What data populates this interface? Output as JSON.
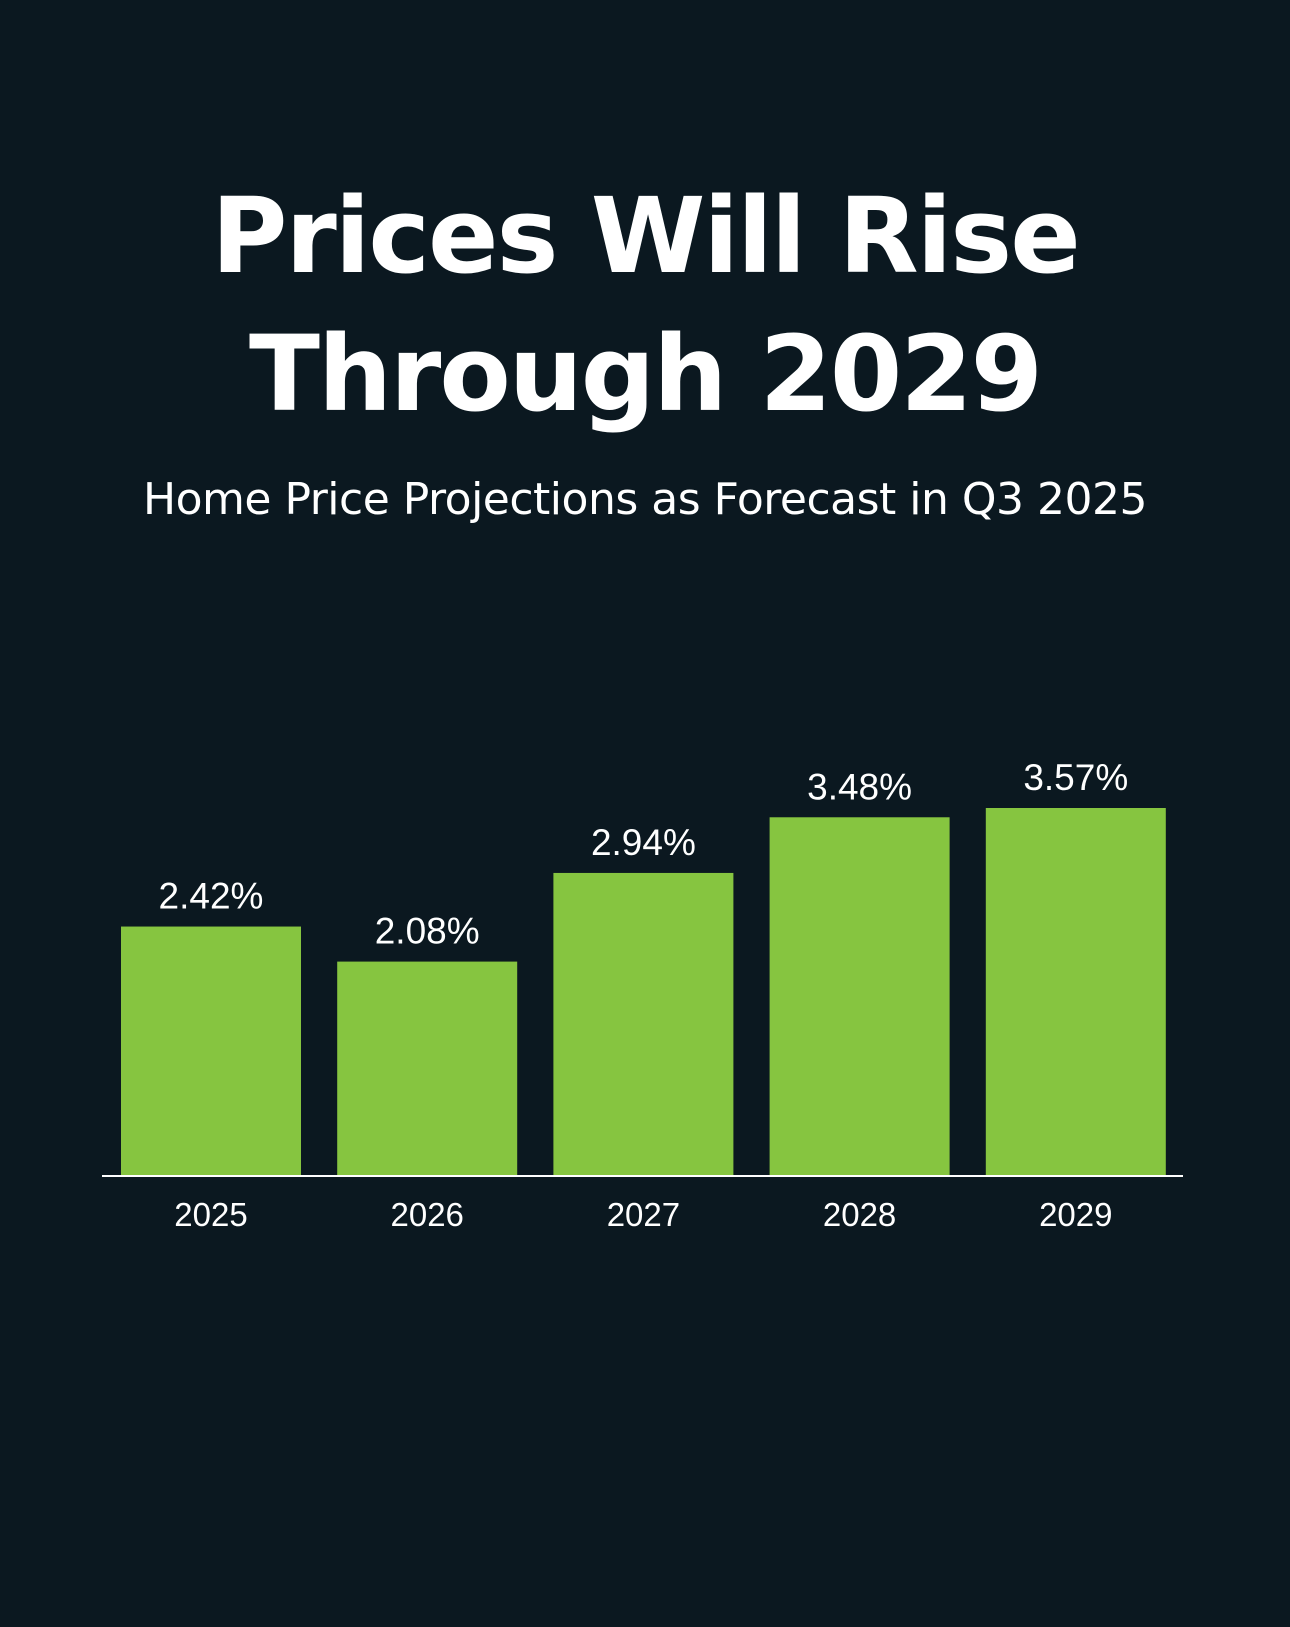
{
  "header": {
    "title_line1": "Prices Will Rise",
    "title_line2": "Through 2029",
    "subtitle": "Home Price Projections as Forecast in Q3 2025"
  },
  "colors": {
    "background": "#0b1820",
    "bar": "#86c540",
    "text": "#ffffff"
  },
  "chart_data": {
    "type": "bar",
    "title": "Prices Will Rise Through 2029",
    "subtitle": "Home Price Projections as Forecast in Q3 2025",
    "categories": [
      "2025",
      "2026",
      "2027",
      "2028",
      "2029"
    ],
    "values": [
      2.42,
      2.08,
      2.94,
      3.48,
      3.57
    ],
    "value_labels": [
      "2.42%",
      "2.08%",
      "2.94%",
      "3.48%",
      "3.57%"
    ],
    "xlabel": "",
    "ylabel": "",
    "ylim": [
      0,
      3.57
    ],
    "grid": false,
    "legend": "none"
  }
}
